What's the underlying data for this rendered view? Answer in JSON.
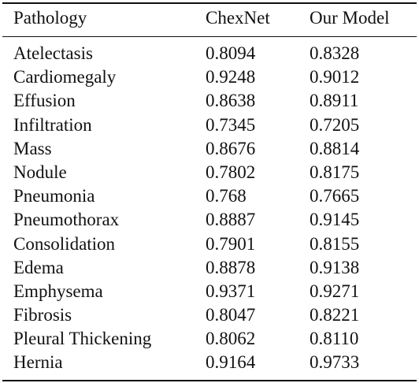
{
  "table": {
    "headers": [
      "Pathology",
      "ChexNet",
      "Our Model"
    ],
    "rows": [
      [
        "Atelectasis",
        "0.8094",
        "0.8328"
      ],
      [
        "Cardiomegaly",
        "0.9248",
        "0.9012"
      ],
      [
        "Effusion",
        "0.8638",
        "0.8911"
      ],
      [
        "Infiltration",
        "0.7345",
        "0.7205"
      ],
      [
        "Mass",
        "0.8676",
        "0.8814"
      ],
      [
        "Nodule",
        "0.7802",
        "0.8175"
      ],
      [
        "Pneumonia",
        "0.768",
        "0.7665"
      ],
      [
        "Pneumothorax",
        "0.8887",
        "0.9145"
      ],
      [
        "Consolidation",
        "0.7901",
        "0.8155"
      ],
      [
        "Edema",
        "0.8878",
        "0.9138"
      ],
      [
        "Emphysema",
        "0.9371",
        "0.9271"
      ],
      [
        "Fibrosis",
        "0.8047",
        "0.8221"
      ],
      [
        "Pleural Thickening",
        "0.8062",
        "0.8110"
      ],
      [
        "Hernia",
        "0.9164",
        "0.9733"
      ]
    ]
  }
}
